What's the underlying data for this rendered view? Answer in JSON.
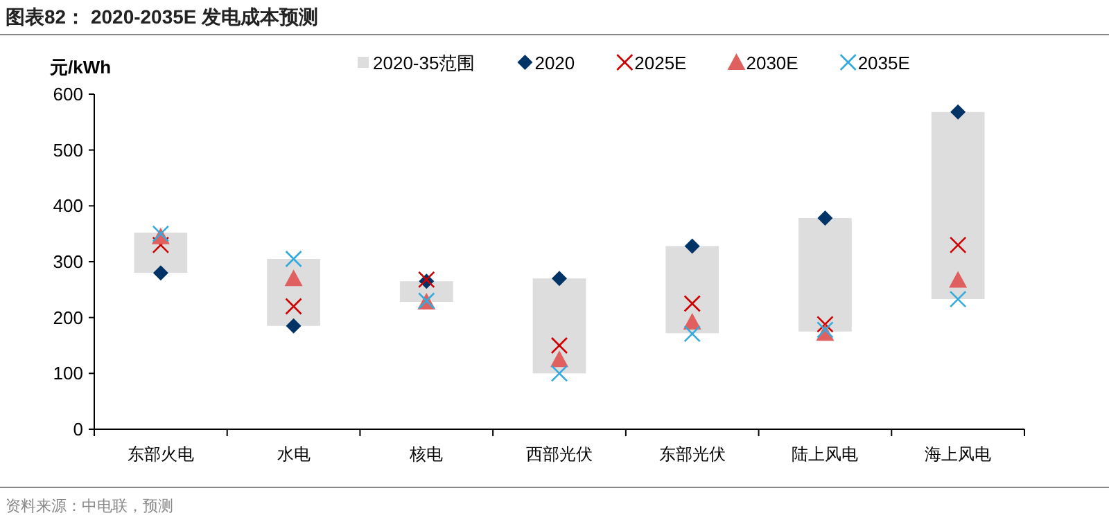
{
  "chart_data": {
    "type": "scatter",
    "title": "图表82： 2020-2035E 发电成本预测",
    "ylabel": "元/kWh",
    "categories": [
      "东部火电",
      "水电",
      "核电",
      "西部光伏",
      "东部光伏",
      "陆上风电",
      "海上风电"
    ],
    "series": [
      {
        "name": "2020-35范围",
        "type": "bar",
        "color": "#dddddd",
        "base": [
          280,
          185,
          228,
          100,
          172,
          175,
          233
        ],
        "values": [
          72,
          120,
          37,
          170,
          156,
          203,
          335
        ]
      },
      {
        "name": "2020",
        "color": "#003366",
        "marker": "diamond",
        "values": [
          280,
          185,
          265,
          270,
          328,
          378,
          568
        ]
      },
      {
        "name": "2025E",
        "color": "#cc0000",
        "marker": "cross",
        "values": [
          330,
          220,
          268,
          150,
          225,
          188,
          330
        ]
      },
      {
        "name": "2030E",
        "color": "#e06060",
        "marker": "triangle",
        "values": [
          345,
          270,
          228,
          125,
          192,
          172,
          267
        ]
      },
      {
        "name": "2035E",
        "color": "#33aadd",
        "marker": "cross",
        "values": [
          350,
          305,
          230,
          100,
          171,
          178,
          233
        ]
      }
    ],
    "ylim": [
      0,
      600
    ],
    "yticks": [
      0,
      100,
      200,
      300,
      400,
      500,
      600
    ],
    "grid": false,
    "legend": "top",
    "annotations": [
      "资料来源：中电联，预测"
    ]
  }
}
